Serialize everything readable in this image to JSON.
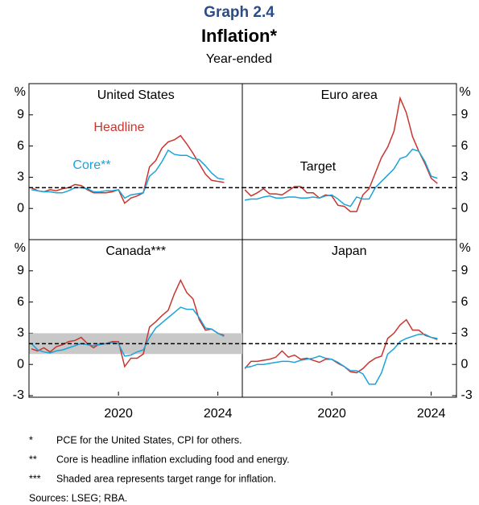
{
  "header": {
    "graph_label": "Graph 2.4",
    "title": "Inflation*",
    "subtitle": "Year-ended",
    "unit": "%"
  },
  "notes": [
    {
      "marker": "*",
      "text": "PCE for the United States, CPI for others."
    },
    {
      "marker": "**",
      "text": "Core is headline inflation excluding food and energy."
    },
    {
      "marker": "***",
      "text": "Shaded area represents target range for inflation."
    }
  ],
  "sources": "Sources: LSEG; RBA.",
  "chart_data": [
    {
      "type": "line",
      "title": "United States",
      "x": [
        2016.5,
        2016.75,
        2017,
        2017.25,
        2017.5,
        2017.75,
        2018,
        2018.25,
        2018.5,
        2018.75,
        2019,
        2019.25,
        2019.5,
        2019.75,
        2020,
        2020.25,
        2020.5,
        2020.75,
        2021,
        2021.25,
        2021.5,
        2021.75,
        2022,
        2022.25,
        2022.5,
        2022.75,
        2023,
        2023.25,
        2023.5,
        2023.75,
        2024,
        2024.25
      ],
      "series": [
        {
          "name": "Headline",
          "color": "#c8362f",
          "values": [
            2.0,
            1.7,
            1.6,
            1.8,
            1.7,
            1.9,
            2.0,
            2.3,
            2.2,
            1.8,
            1.5,
            1.5,
            1.5,
            1.6,
            1.8,
            0.5,
            1.0,
            1.2,
            1.5,
            4.0,
            4.6,
            5.8,
            6.4,
            6.6,
            7.0,
            6.2,
            5.3,
            4.3,
            3.3,
            2.7,
            2.6,
            2.5
          ]
        },
        {
          "name": "Core**",
          "color": "#1aa3dc",
          "values": [
            1.8,
            1.7,
            1.6,
            1.6,
            1.5,
            1.5,
            1.7,
            2.0,
            2.0,
            1.9,
            1.6,
            1.6,
            1.7,
            1.7,
            1.8,
            1.0,
            1.3,
            1.4,
            1.5,
            3.1,
            3.6,
            4.5,
            5.6,
            5.2,
            5.1,
            5.1,
            4.8,
            4.7,
            4.1,
            3.4,
            2.9,
            2.8
          ]
        }
      ],
      "target": 2,
      "xlim": [
        2016.4,
        2025
      ],
      "ylim": [
        -3,
        12
      ],
      "yticks": [
        0,
        3,
        6,
        9
      ]
    },
    {
      "type": "line",
      "title": "Euro area",
      "x": [
        2016.5,
        2016.75,
        2017,
        2017.25,
        2017.5,
        2017.75,
        2018,
        2018.25,
        2018.5,
        2018.75,
        2019,
        2019.25,
        2019.5,
        2019.75,
        2020,
        2020.25,
        2020.5,
        2020.75,
        2021,
        2021.25,
        2021.5,
        2021.75,
        2022,
        2022.25,
        2022.5,
        2022.75,
        2023,
        2023.25,
        2023.5,
        2023.75,
        2024,
        2024.25
      ],
      "series": [
        {
          "color": "#c8362f",
          "values": [
            1.8,
            1.2,
            1.5,
            1.9,
            1.4,
            1.4,
            1.3,
            1.7,
            2.1,
            2.1,
            1.5,
            1.5,
            1.0,
            1.3,
            1.2,
            0.3,
            0.2,
            -0.3,
            -0.3,
            1.3,
            1.9,
            3.4,
            4.9,
            5.9,
            7.4,
            10.6,
            9.2,
            6.9,
            5.5,
            4.3,
            2.9,
            2.4
          ]
        },
        {
          "color": "#1aa3dc",
          "values": [
            0.8,
            0.9,
            0.9,
            1.1,
            1.2,
            1.0,
            1.0,
            1.1,
            1.1,
            1.0,
            1.0,
            1.1,
            1.0,
            1.2,
            1.3,
            0.9,
            0.4,
            0.2,
            1.1,
            0.9,
            0.9,
            2.0,
            2.6,
            3.2,
            3.8,
            4.8,
            5.0,
            5.7,
            5.5,
            4.5,
            3.1,
            2.9
          ]
        }
      ],
      "target": 2,
      "target_label": "Target",
      "xlim": [
        2016.4,
        2025
      ],
      "ylim": [
        -3,
        12
      ],
      "yticks": [
        0,
        3,
        6,
        9
      ]
    },
    {
      "type": "line",
      "title": "Canada***",
      "x": [
        2016.5,
        2016.75,
        2017,
        2017.25,
        2017.5,
        2017.75,
        2018,
        2018.25,
        2018.5,
        2018.75,
        2019,
        2019.25,
        2019.5,
        2019.75,
        2020,
        2020.25,
        2020.5,
        2020.75,
        2021,
        2021.25,
        2021.5,
        2021.75,
        2022,
        2022.25,
        2022.5,
        2022.75,
        2023,
        2023.25,
        2023.5,
        2023.75,
        2024,
        2024.25
      ],
      "series": [
        {
          "color": "#c8362f",
          "values": [
            1.5,
            1.3,
            1.6,
            1.2,
            1.7,
            1.9,
            2.2,
            2.3,
            2.6,
            2.0,
            1.6,
            2.0,
            2.0,
            2.2,
            2.2,
            -0.2,
            0.6,
            0.6,
            1.0,
            3.6,
            4.1,
            4.7,
            5.2,
            6.8,
            8.1,
            6.9,
            6.3,
            4.3,
            3.3,
            3.4,
            3.0,
            2.8
          ]
        },
        {
          "color": "#1aa3dc",
          "values": [
            2.0,
            1.4,
            1.2,
            1.1,
            1.3,
            1.4,
            1.6,
            1.8,
            2.0,
            1.9,
            1.8,
            1.9,
            2.0,
            2.1,
            2.0,
            0.8,
            0.9,
            1.2,
            1.4,
            2.6,
            3.5,
            4.0,
            4.5,
            5.0,
            5.5,
            5.3,
            5.3,
            4.5,
            3.5,
            3.4,
            3.0,
            2.7
          ]
        }
      ],
      "target": 2,
      "target_range": [
        1,
        3
      ],
      "xlim": [
        2016.4,
        2025
      ],
      "ylim": [
        -3,
        12
      ],
      "yticks": [
        -3,
        0,
        3,
        6,
        9
      ],
      "xticks": [
        2020,
        2024
      ]
    },
    {
      "type": "line",
      "title": "Japan",
      "x": [
        2016.5,
        2016.75,
        2017,
        2017.25,
        2017.5,
        2017.75,
        2018,
        2018.25,
        2018.5,
        2018.75,
        2019,
        2019.25,
        2019.5,
        2019.75,
        2020,
        2020.25,
        2020.5,
        2020.75,
        2021,
        2021.25,
        2021.5,
        2021.75,
        2022,
        2022.25,
        2022.5,
        2022.75,
        2023,
        2023.25,
        2023.5,
        2023.75,
        2024,
        2024.25
      ],
      "series": [
        {
          "color": "#c8362f",
          "values": [
            -0.4,
            0.3,
            0.3,
            0.4,
            0.5,
            0.7,
            1.3,
            0.7,
            0.9,
            0.5,
            0.6,
            0.4,
            0.2,
            0.5,
            0.5,
            0.1,
            -0.2,
            -0.7,
            -0.8,
            -0.4,
            0.2,
            0.6,
            0.8,
            2.5,
            3.0,
            3.8,
            4.3,
            3.3,
            3.3,
            2.8,
            2.6,
            2.4
          ]
        },
        {
          "color": "#1aa3dc",
          "values": [
            -0.3,
            -0.2,
            0,
            0,
            0.1,
            0.2,
            0.3,
            0.3,
            0.2,
            0.4,
            0.5,
            0.6,
            0.8,
            0.6,
            0.5,
            0.2,
            -0.2,
            -0.6,
            -0.6,
            -0.9,
            -1.9,
            -1.9,
            -0.8,
            1.0,
            1.5,
            2.2,
            2.5,
            2.7,
            2.9,
            2.9,
            2.6,
            2.5
          ]
        }
      ],
      "target": 2,
      "xlim": [
        2016.4,
        2025
      ],
      "ylim": [
        -3,
        12
      ],
      "yticks": [
        -3,
        0,
        3,
        6,
        9
      ],
      "xticks": [
        2020,
        2024
      ]
    }
  ]
}
